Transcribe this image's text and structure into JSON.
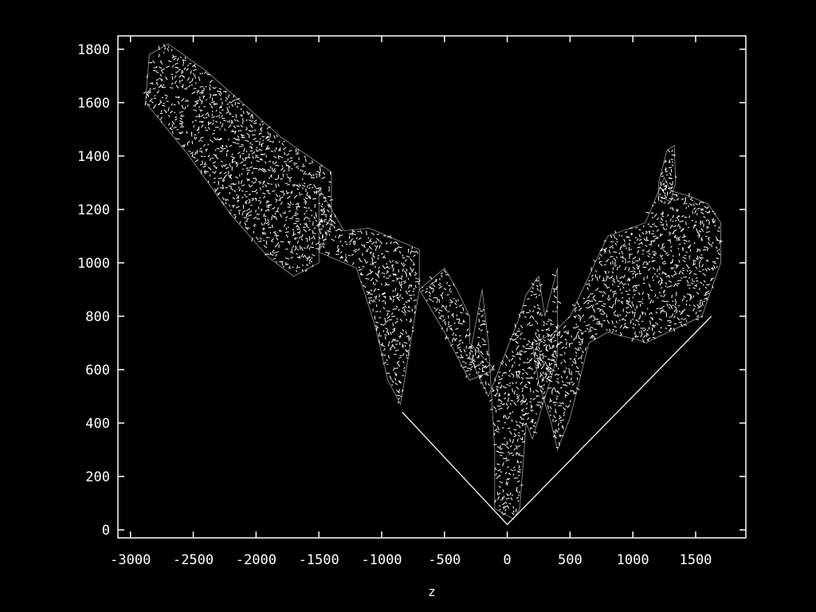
{
  "chart_data": {
    "type": "scatter",
    "title": "",
    "xlabel": "z",
    "ylabel": "",
    "xlim": [
      -3100,
      1900
    ],
    "ylim": [
      -30,
      1850
    ],
    "grid": false,
    "x_ticks": [
      -3000,
      -2500,
      -2000,
      -1500,
      -1000,
      -500,
      0,
      500,
      1000,
      1500
    ],
    "x_tick_labels": [
      "-3000",
      "-2500",
      "-2000",
      "-1500",
      "-1000",
      "-500",
      "0",
      "500",
      "1000",
      "1500"
    ],
    "y_ticks": [
      0,
      200,
      400,
      600,
      800,
      1000,
      1200,
      1400,
      1600,
      1800
    ],
    "y_tick_labels": [
      "0",
      "200",
      "400",
      "600",
      "800",
      "1000",
      "1200",
      "1400",
      "1600",
      "1800"
    ],
    "colors": {
      "background": "#000000",
      "foreground": "#ffffff"
    },
    "boundary_line": {
      "x": [
        -835,
        0,
        1625
      ],
      "y": [
        440,
        20,
        800
      ]
    },
    "regions": [
      {
        "x": [
          -2850,
          -2700,
          -2400,
          -1800,
          -1400,
          -1400,
          -1500,
          -1500,
          -1700,
          -1900,
          -2200,
          -2550,
          -2880
        ],
        "y": [
          1780,
          1820,
          1720,
          1470,
          1340,
          1140,
          1040,
          1000,
          950,
          1020,
          1180,
          1410,
          1600
        ]
      },
      {
        "x": [
          -1500,
          -1300,
          -1100,
          -700,
          -700,
          -500,
          -400,
          -300,
          -300,
          -100,
          -300,
          -500,
          -700,
          -850,
          -950,
          -1050,
          -1200,
          -1500
        ],
        "y": [
          1280,
          1120,
          1130,
          1050,
          900,
          980,
          900,
          800,
          700,
          600,
          560,
          740,
          900,
          470,
          560,
          760,
          980,
          1040
        ]
      },
      {
        "x": [
          -200,
          -300,
          -150,
          100,
          150,
          250,
          300,
          400,
          400,
          200,
          150,
          100,
          50,
          -100,
          -100,
          -150,
          -200
        ],
        "y": [
          900,
          650,
          500,
          800,
          880,
          950,
          800,
          980,
          650,
          340,
          400,
          80,
          40,
          80,
          300,
          700,
          900
        ]
      },
      {
        "x": [
          200,
          350,
          500,
          700,
          800,
          1100,
          1250,
          1300,
          1450,
          1600,
          1700,
          1700,
          1550,
          1100,
          1050,
          800,
          650,
          500,
          400,
          350,
          250
        ],
        "y": [
          700,
          730,
          800,
          1000,
          1100,
          1150,
          1320,
          1270,
          1250,
          1220,
          1150,
          1000,
          800,
          700,
          710,
          740,
          700,
          420,
          300,
          400,
          550
        ]
      },
      {
        "x": [
          1205,
          1270,
          1330,
          1340,
          1300,
          1205
        ],
        "y": [
          1300,
          1420,
          1440,
          1300,
          1230,
          1250
        ]
      }
    ]
  }
}
